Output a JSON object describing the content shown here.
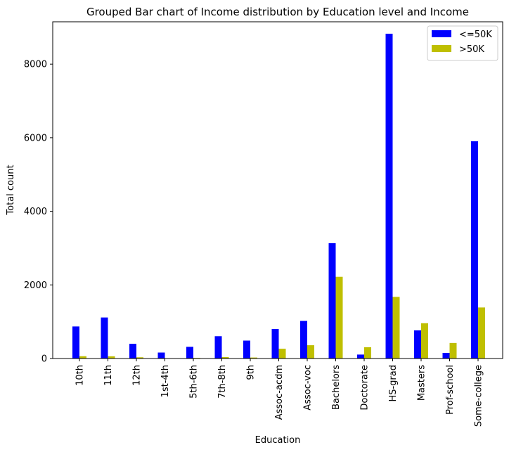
{
  "chart_data": {
    "type": "bar",
    "title": "Grouped Bar chart of Income distribution by Education level and Income",
    "xlabel": "Education",
    "ylabel": "Total count",
    "ylim": [
      0,
      9150
    ],
    "yticks": [
      0,
      2000,
      4000,
      6000,
      8000
    ],
    "grid": false,
    "legend_position": "top-right",
    "categories": [
      "10th",
      "11th",
      "12th",
      "1st-4th",
      "5th-6th",
      "7th-8th",
      "9th",
      "Assoc-acdm",
      "Assoc-voc",
      "Bachelors",
      "Doctorate",
      "HS-grad",
      "Masters",
      "Prof-school",
      "Some-college"
    ],
    "series": [
      {
        "name": "<=50K",
        "color": "#0000ff",
        "values": [
          871,
          1115,
          400,
          162,
          317,
          606,
          487,
          802,
          1021,
          3134,
          107,
          8826,
          764,
          153,
          5904
        ]
      },
      {
        "name": ">50K",
        "color": "#bfbf00",
        "values": [
          62,
          60,
          33,
          6,
          16,
          40,
          27,
          265,
          361,
          2221,
          306,
          1675,
          959,
          423,
          1387
        ]
      }
    ]
  }
}
